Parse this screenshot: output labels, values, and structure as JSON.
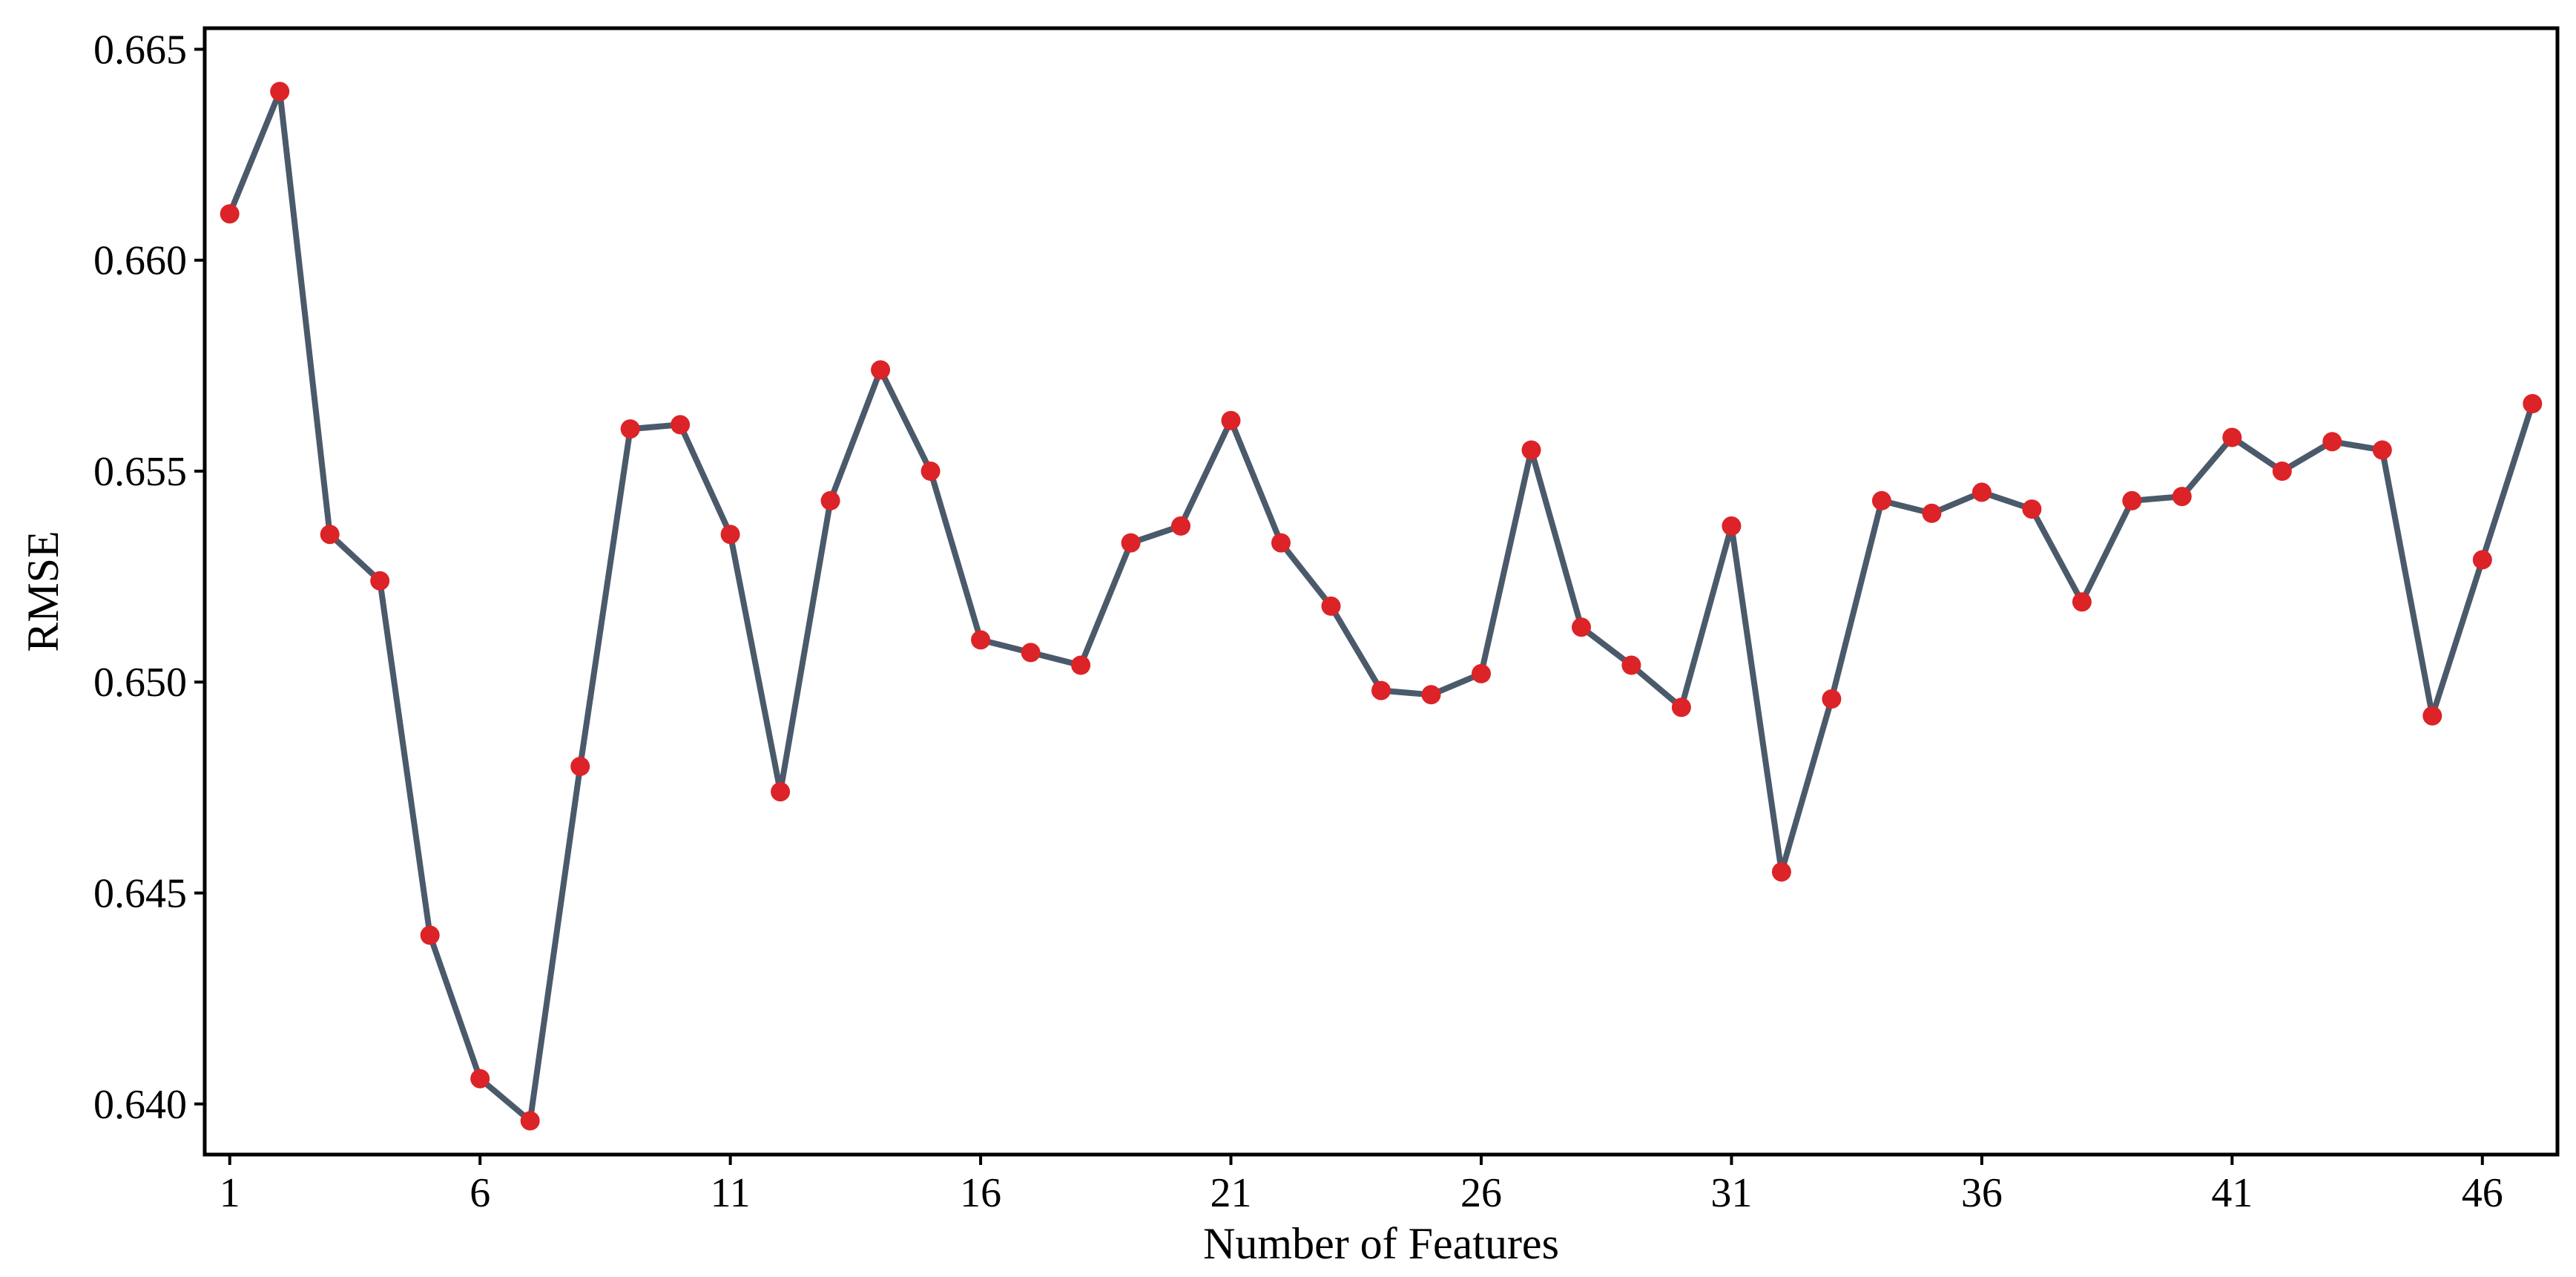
{
  "chart_data": {
    "type": "line",
    "xlabel": "Number of Features",
    "ylabel": "RMSE",
    "title": "",
    "xlim": [
      0.5,
      47.5
    ],
    "ylim": [
      0.6388,
      0.6655
    ],
    "xticks": [
      1,
      6,
      11,
      16,
      21,
      26,
      31,
      36,
      41,
      46
    ],
    "xtick_labels": [
      "1",
      "6",
      "11",
      "16",
      "21",
      "26",
      "31",
      "36",
      "41",
      "46"
    ],
    "yticks": [
      0.64,
      0.645,
      0.65,
      0.655,
      0.66,
      0.665
    ],
    "ytick_labels": [
      "0.640",
      "0.645",
      "0.650",
      "0.655",
      "0.660",
      "0.665"
    ],
    "grid": false,
    "series": [
      {
        "line_color": "#4a5a6a",
        "marker_color": "#dc2327",
        "x": [
          1,
          2,
          3,
          4,
          5,
          6,
          7,
          8,
          9,
          10,
          11,
          12,
          13,
          14,
          15,
          16,
          17,
          18,
          19,
          20,
          21,
          22,
          23,
          24,
          25,
          26,
          27,
          28,
          29,
          30,
          31,
          32,
          33,
          34,
          35,
          36,
          37,
          38,
          39,
          40,
          41,
          42,
          43,
          44,
          45,
          46,
          47
        ],
        "values": [
          0.6611,
          0.664,
          0.6535,
          0.6524,
          0.644,
          0.6406,
          0.6396,
          0.648,
          0.656,
          0.6561,
          0.6535,
          0.6474,
          0.6543,
          0.6574,
          0.655,
          0.651,
          0.6507,
          0.6504,
          0.6533,
          0.6537,
          0.6562,
          0.6533,
          0.6518,
          0.6498,
          0.6497,
          0.6502,
          0.6555,
          0.6513,
          0.6504,
          0.6494,
          0.6537,
          0.6455,
          0.6496,
          0.6543,
          0.654,
          0.6545,
          0.6541,
          0.6519,
          0.6543,
          0.6544,
          0.6558,
          0.655,
          0.6557,
          0.6555,
          0.6492,
          0.6529,
          0.6566
        ]
      }
    ]
  }
}
